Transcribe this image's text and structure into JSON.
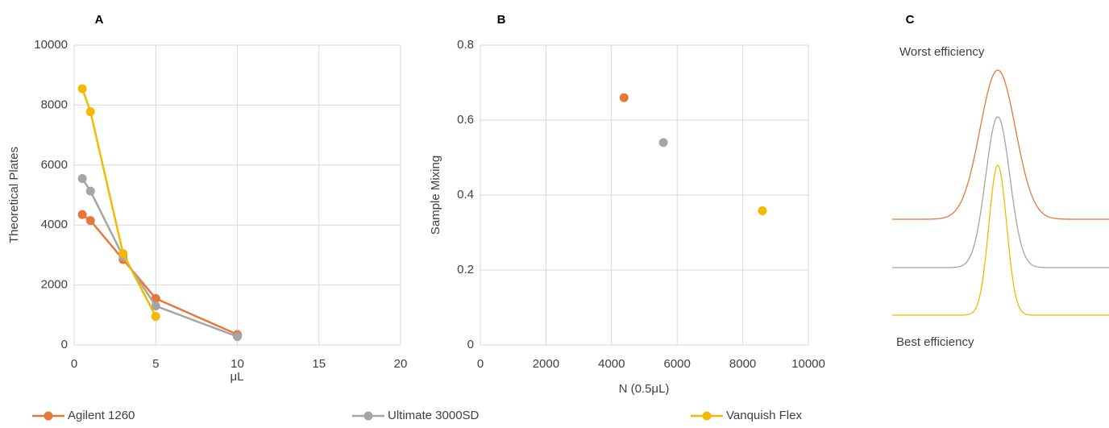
{
  "chart_data": [
    {
      "type": "line",
      "label": "A",
      "xlabel": "μL",
      "ylabel": "Theoretical Plates",
      "x": [
        0.5,
        1,
        3,
        5,
        10
      ],
      "series": [
        {
          "name": "Agilent 1260",
          "color": "#e8773a",
          "values": [
            4350,
            4150,
            2850,
            1550,
            350
          ]
        },
        {
          "name": "Ultimate 3000SD",
          "color": "#a5a5a5",
          "values": [
            5550,
            5130,
            2950,
            1300,
            280
          ]
        },
        {
          "name": "Vanquish Flex",
          "color": "#f5b800",
          "values": [
            8550,
            7780,
            3050,
            950,
            null
          ]
        }
      ],
      "xlim": [
        0,
        20
      ],
      "xticks": [
        0,
        5,
        10,
        15,
        20
      ],
      "ylim": [
        0,
        10000
      ],
      "yticks": [
        0,
        2000,
        4000,
        6000,
        8000,
        10000
      ],
      "grid": true,
      "legend": "bottom"
    },
    {
      "type": "scatter",
      "label": "B",
      "xlabel": "N (0.5μL)",
      "ylabel": "Sample Mixing",
      "series": [
        {
          "color": "#e8773a",
          "x": [
            4380
          ],
          "values": [
            0.66
          ]
        },
        {
          "color": "#a5a5a5",
          "x": [
            5580
          ],
          "values": [
            0.54
          ]
        },
        {
          "color": "#f5b800",
          "x": [
            8600
          ],
          "values": [
            0.358
          ]
        }
      ],
      "xlim": [
        0,
        10000
      ],
      "xticks": [
        0,
        2000,
        4000,
        6000,
        8000,
        10000
      ],
      "ylim": [
        0,
        0.8
      ],
      "yticks": [
        0,
        0.2,
        0.4,
        0.6,
        0.8
      ],
      "grid": true
    },
    {
      "type": "peaks",
      "label": "C",
      "top_text": "Worst efficiency",
      "bottom_text": "Best efficiency",
      "colors": [
        "#e8773a",
        "#a5a5a5",
        "#f5b800"
      ]
    }
  ]
}
